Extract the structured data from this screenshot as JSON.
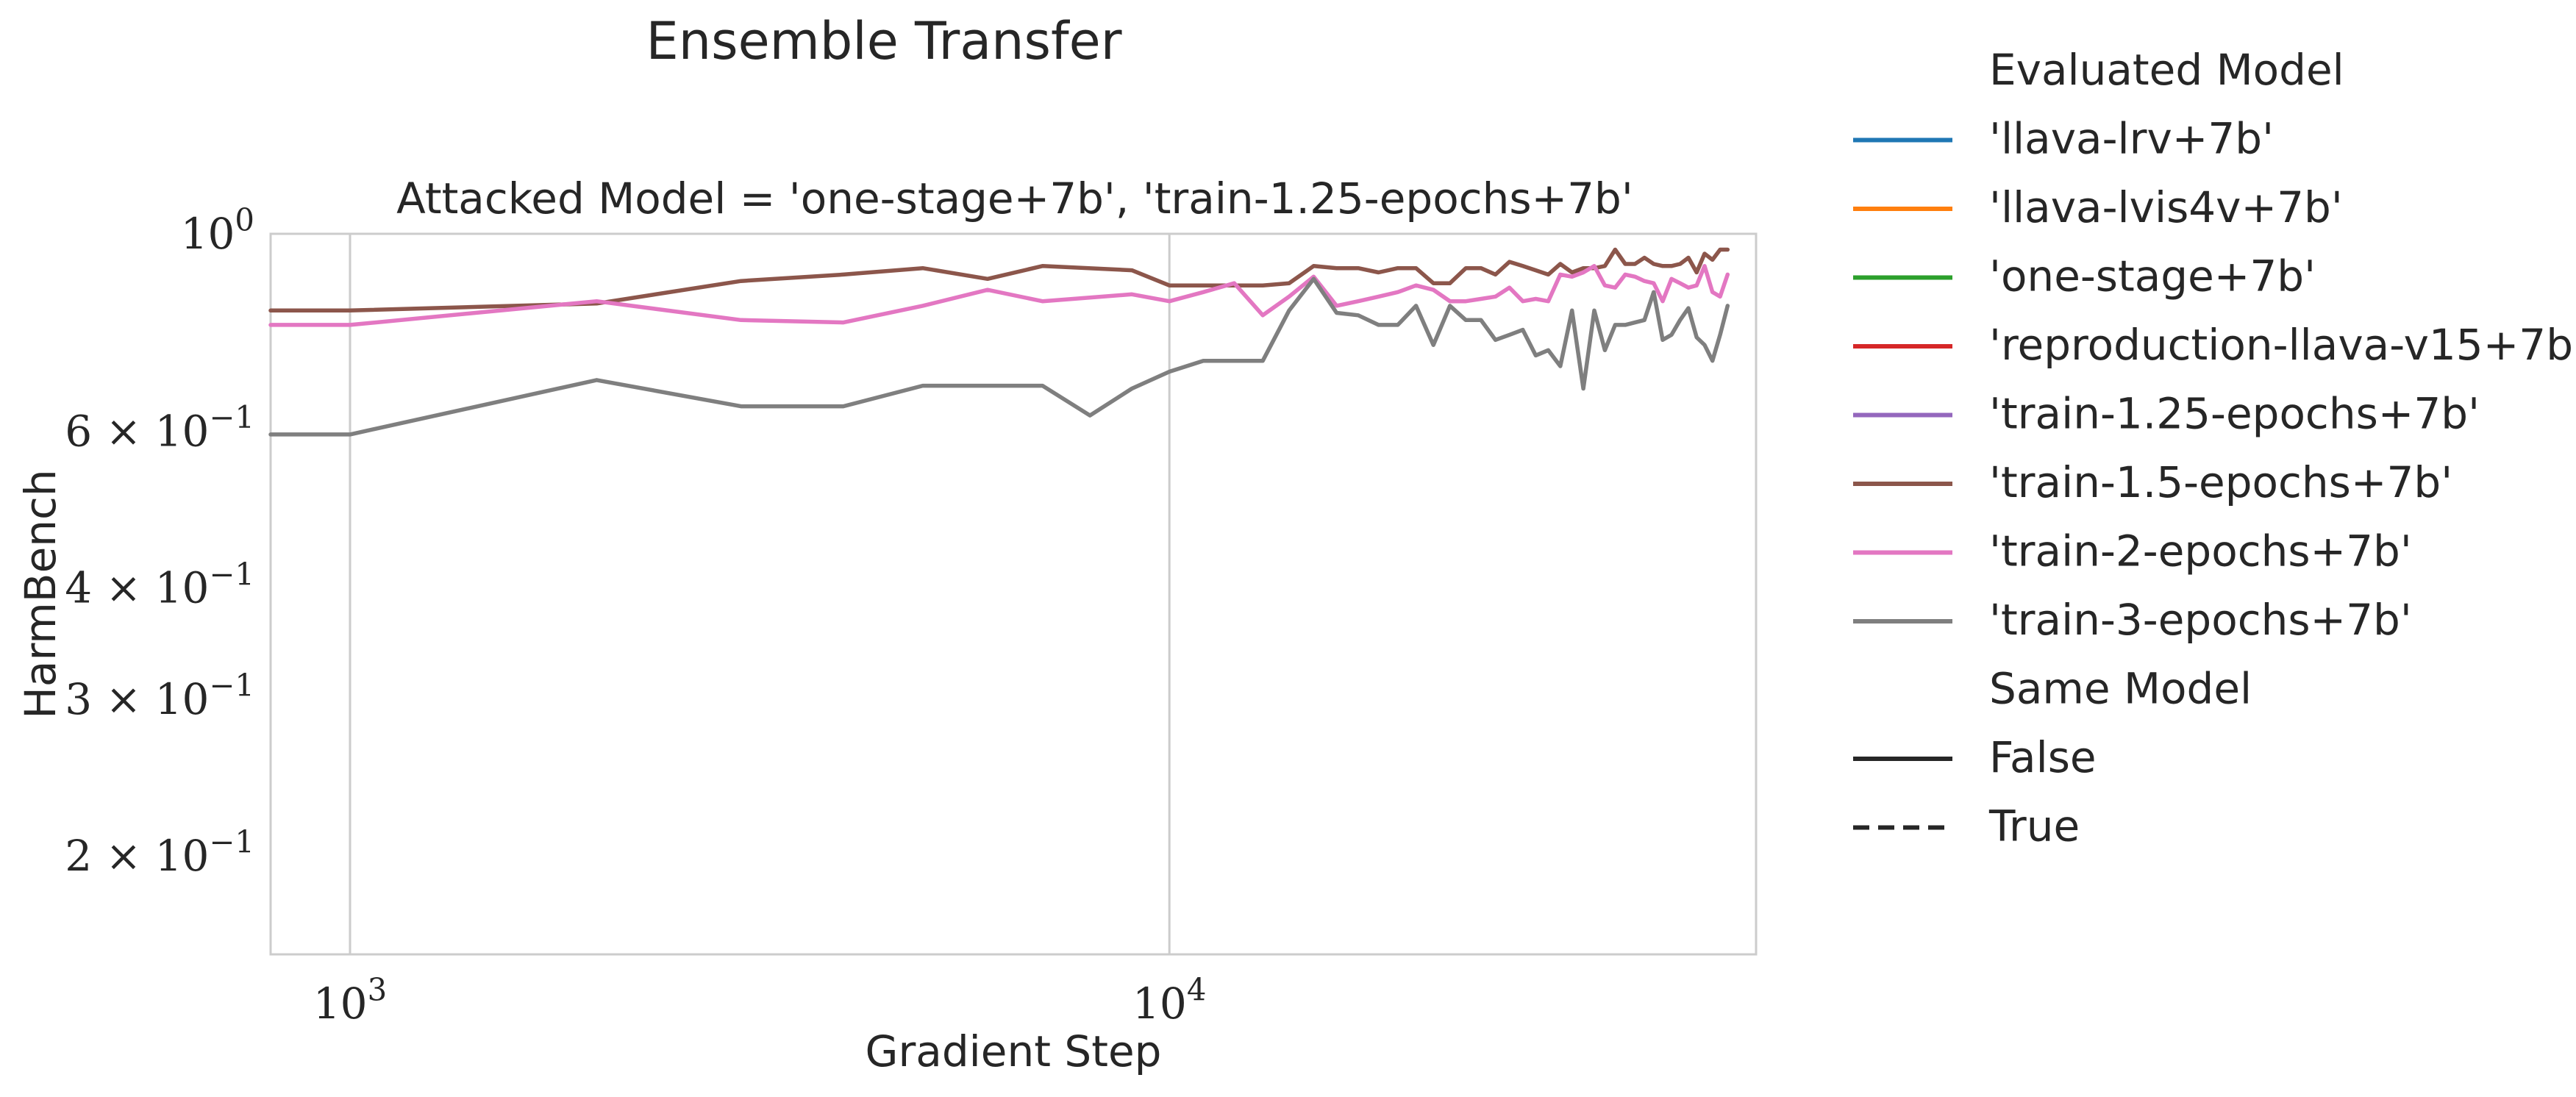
{
  "figure": {
    "suptitle": "Ensemble Transfer"
  },
  "chart_data": {
    "type": "line",
    "title": "Attacked Model = 'one-stage+7b', 'train-1.25-epochs+7b'",
    "xlabel": "Gradient Step",
    "ylabel": "HarmBench",
    "xscale": "log",
    "yscale": "log",
    "xlim": [
      800,
      52000
    ],
    "ylim": [
      0.155,
      1.0
    ],
    "grid": "vertical-only",
    "x_ticks": [
      {
        "value": 1000,
        "mantissa": "10",
        "exponent": "3"
      },
      {
        "value": 10000,
        "mantissa": "10",
        "exponent": "4"
      }
    ],
    "y_ticks": [
      {
        "value": 1.0,
        "mantissa": "10",
        "exponent": "0",
        "prefix": ""
      },
      {
        "value": 0.6,
        "mantissa": "10",
        "exponent": "−1",
        "prefix": "6 × "
      },
      {
        "value": 0.4,
        "mantissa": "10",
        "exponent": "−1",
        "prefix": "4 × "
      },
      {
        "value": 0.3,
        "mantissa": "10",
        "exponent": "−1",
        "prefix": "3 × "
      },
      {
        "value": 0.2,
        "mantissa": "10",
        "exponent": "−1",
        "prefix": "2 × "
      }
    ],
    "series": [
      {
        "name": "'train-1.5-epochs+7b'",
        "color": "#8c564b",
        "x": [
          800,
          1000,
          2000,
          3000,
          4000,
          5000,
          6000,
          7000,
          9000,
          10000,
          11000,
          12000,
          13000,
          14000,
          15000,
          16000,
          17000,
          18000,
          19000,
          20000,
          21000,
          22000,
          23000,
          24000,
          25000,
          26000,
          27000,
          28000,
          29000,
          30000,
          31000,
          32000,
          33000,
          34000,
          35000,
          36000,
          37000,
          38000,
          39000,
          40000,
          41000,
          42000,
          43000,
          44000,
          45000,
          46000,
          47000,
          48000
        ],
        "y": [
          0.82,
          0.82,
          0.835,
          0.885,
          0.9,
          0.915,
          0.89,
          0.92,
          0.91,
          0.875,
          0.875,
          0.875,
          0.875,
          0.88,
          0.92,
          0.915,
          0.915,
          0.905,
          0.915,
          0.915,
          0.88,
          0.88,
          0.915,
          0.915,
          0.9,
          0.93,
          0.92,
          0.91,
          0.9,
          0.925,
          0.905,
          0.915,
          0.915,
          0.92,
          0.96,
          0.925,
          0.925,
          0.94,
          0.925,
          0.92,
          0.92,
          0.925,
          0.94,
          0.905,
          0.95,
          0.935,
          0.96,
          0.96
        ]
      },
      {
        "name": "'train-2-epochs+7b'",
        "color": "#e377c2",
        "x": [
          800,
          1000,
          2000,
          3000,
          4000,
          5000,
          6000,
          7000,
          9000,
          10000,
          11000,
          12000,
          13000,
          14000,
          15000,
          16000,
          17000,
          18000,
          19000,
          20000,
          21000,
          22000,
          23000,
          24000,
          25000,
          26000,
          27000,
          28000,
          29000,
          30000,
          31000,
          32000,
          33000,
          34000,
          35000,
          36000,
          37000,
          38000,
          39000,
          40000,
          41000,
          42000,
          43000,
          44000,
          45000,
          46000,
          47000,
          48000
        ],
        "y": [
          0.79,
          0.79,
          0.84,
          0.8,
          0.795,
          0.83,
          0.865,
          0.84,
          0.855,
          0.84,
          0.86,
          0.88,
          0.81,
          0.85,
          0.895,
          0.83,
          0.84,
          0.85,
          0.86,
          0.875,
          0.865,
          0.84,
          0.84,
          0.845,
          0.85,
          0.87,
          0.84,
          0.845,
          0.84,
          0.9,
          0.895,
          0.905,
          0.92,
          0.875,
          0.87,
          0.9,
          0.895,
          0.885,
          0.88,
          0.84,
          0.89,
          0.88,
          0.87,
          0.875,
          0.92,
          0.86,
          0.85,
          0.9
        ]
      },
      {
        "name": "'train-3-epochs+7b'",
        "color": "#7f7f7f",
        "x": [
          800,
          1000,
          2000,
          3000,
          4000,
          5000,
          6000,
          7000,
          8000,
          9000,
          10000,
          11000,
          12000,
          13000,
          14000,
          15000,
          16000,
          17000,
          18000,
          19000,
          20000,
          21000,
          22000,
          23000,
          24000,
          25000,
          26000,
          27000,
          28000,
          29000,
          30000,
          31000,
          32000,
          33000,
          34000,
          35000,
          36000,
          37000,
          38000,
          39000,
          40000,
          41000,
          42000,
          43000,
          44000,
          45000,
          46000,
          47000,
          48000
        ],
        "y": [
          0.595,
          0.595,
          0.685,
          0.64,
          0.64,
          0.675,
          0.675,
          0.675,
          0.625,
          0.67,
          0.7,
          0.72,
          0.72,
          0.72,
          0.82,
          0.89,
          0.815,
          0.81,
          0.79,
          0.79,
          0.83,
          0.75,
          0.83,
          0.8,
          0.8,
          0.76,
          0.77,
          0.78,
          0.73,
          0.74,
          0.71,
          0.82,
          0.67,
          0.82,
          0.74,
          0.79,
          0.79,
          0.795,
          0.8,
          0.86,
          0.76,
          0.77,
          0.8,
          0.825,
          0.765,
          0.75,
          0.72,
          0.77,
          0.83
        ]
      }
    ],
    "legend": {
      "placement": "outside-right",
      "title": "Evaluated Model",
      "entries": [
        {
          "label": "'llava-lrv+7b'",
          "color": "#1f77b4"
        },
        {
          "label": "'llava-lvis4v+7b'",
          "color": "#ff7f0e"
        },
        {
          "label": "'one-stage+7b'",
          "color": "#2ca02c"
        },
        {
          "label": "'reproduction-llava-v15+7b'",
          "color": "#d62728"
        },
        {
          "label": "'train-1.25-epochs+7b'",
          "color": "#9467bd"
        },
        {
          "label": "'train-1.5-epochs+7b'",
          "color": "#8c564b"
        },
        {
          "label": "'train-2-epochs+7b'",
          "color": "#e377c2"
        },
        {
          "label": "'train-3-epochs+7b'",
          "color": "#7f7f7f"
        }
      ],
      "style_title": "Same Model",
      "style_entries": [
        {
          "label": "False",
          "dash": "solid",
          "color": "#262626"
        },
        {
          "label": "True",
          "dash": "dashed",
          "color": "#262626"
        }
      ]
    }
  }
}
